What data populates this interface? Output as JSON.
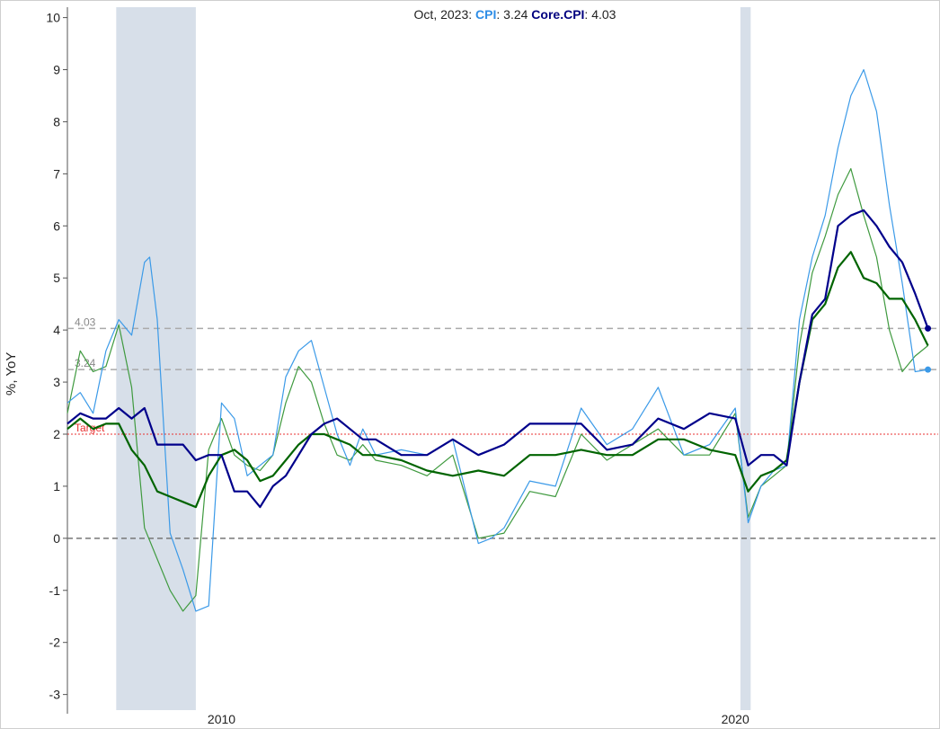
{
  "legend": {
    "date": "Oct, 2023",
    "cpi_name": "CPI",
    "cpi_value": "3.24",
    "core_name": "Core.CPI",
    "core_value": "4.03"
  },
  "colors": {
    "cpi": "#3b9ae8",
    "cpi_green": "#3f9a3f",
    "core": "#00008b",
    "core_green": "#006400",
    "target": "#e83030",
    "recession": "#d7dfe9",
    "dash": "#aaaaaa"
  },
  "chart_data": {
    "type": "line",
    "ylabel": "%, YoY",
    "ylim": [
      -3.3,
      10.2
    ],
    "xlim": [
      2007.0,
      2023.95
    ],
    "x_ticks": [
      "2010",
      "2020"
    ],
    "y_ticks": [
      -3,
      -2,
      -1,
      0,
      1,
      2,
      3,
      4,
      5,
      6,
      7,
      8,
      9,
      10
    ],
    "recessions": [
      [
        2007.95,
        2009.5
      ],
      [
        2020.1,
        2020.3
      ]
    ],
    "target": {
      "value": 2,
      "label": "Target"
    },
    "reference_lines": [
      {
        "value": 4.03,
        "label": "4.03"
      },
      {
        "value": 3.24,
        "label": "3.24"
      }
    ],
    "series": [
      {
        "name": "CPI",
        "style": "thin",
        "x": [
          2007.0,
          2007.25,
          2007.5,
          2007.75,
          2008.0,
          2008.25,
          2008.5,
          2008.6,
          2008.75,
          2009.0,
          2009.25,
          2009.5,
          2009.75,
          2010.0,
          2010.25,
          2010.5,
          2010.75,
          2011.0,
          2011.25,
          2011.5,
          2011.75,
          2012.0,
          2012.25,
          2012.5,
          2012.75,
          2013.0,
          2013.5,
          2014.0,
          2014.5,
          2015.0,
          2015.25,
          2015.5,
          2016.0,
          2016.5,
          2017.0,
          2017.5,
          2018.0,
          2018.5,
          2019.0,
          2019.5,
          2020.0,
          2020.25,
          2020.5,
          2020.75,
          2021.0,
          2021.25,
          2021.5,
          2021.75,
          2022.0,
          2022.25,
          2022.5,
          2022.75,
          2023.0,
          2023.25,
          2023.5,
          2023.75
        ],
        "values": [
          2.6,
          2.8,
          2.4,
          3.6,
          4.2,
          3.9,
          5.3,
          5.4,
          4.2,
          0.1,
          -0.6,
          -1.4,
          -1.3,
          2.6,
          2.3,
          1.2,
          1.4,
          1.6,
          3.1,
          3.6,
          3.8,
          2.9,
          2.0,
          1.4,
          2.1,
          1.6,
          1.7,
          1.6,
          1.9,
          -0.1,
          0.0,
          0.2,
          1.1,
          1.0,
          2.5,
          1.8,
          2.1,
          2.9,
          1.6,
          1.8,
          2.5,
          0.3,
          1.0,
          1.3,
          1.4,
          4.2,
          5.4,
          6.2,
          7.5,
          8.5,
          9.0,
          8.2,
          6.4,
          4.9,
          3.2,
          3.24
        ]
      },
      {
        "name": "Core.CPI",
        "style": "thick",
        "x": [
          2007.0,
          2007.25,
          2007.5,
          2007.75,
          2008.0,
          2008.25,
          2008.5,
          2008.75,
          2009.0,
          2009.25,
          2009.5,
          2009.75,
          2010.0,
          2010.25,
          2010.5,
          2010.75,
          2011.0,
          2011.25,
          2011.5,
          2011.75,
          2012.0,
          2012.25,
          2012.5,
          2012.75,
          2013.0,
          2013.5,
          2014.0,
          2014.5,
          2015.0,
          2015.5,
          2016.0,
          2016.5,
          2017.0,
          2017.5,
          2018.0,
          2018.5,
          2019.0,
          2019.5,
          2020.0,
          2020.25,
          2020.5,
          2020.75,
          2021.0,
          2021.25,
          2021.5,
          2021.75,
          2022.0,
          2022.25,
          2022.5,
          2022.75,
          2023.0,
          2023.25,
          2023.5,
          2023.75
        ],
        "values": [
          2.2,
          2.4,
          2.3,
          2.3,
          2.5,
          2.3,
          2.5,
          1.8,
          1.8,
          1.8,
          1.5,
          1.6,
          1.6,
          0.9,
          0.9,
          0.6,
          1.0,
          1.2,
          1.6,
          2.0,
          2.2,
          2.3,
          2.1,
          1.9,
          1.9,
          1.6,
          1.6,
          1.9,
          1.6,
          1.8,
          2.2,
          2.2,
          2.2,
          1.7,
          1.8,
          2.3,
          2.1,
          2.4,
          2.3,
          1.4,
          1.6,
          1.6,
          1.4,
          3.0,
          4.3,
          4.6,
          6.0,
          6.2,
          6.3,
          6.0,
          5.6,
          5.3,
          4.7,
          4.03
        ]
      },
      {
        "name": "CPI (green, thin)",
        "style": "thin",
        "x": [
          2007.0,
          2007.25,
          2007.5,
          2007.75,
          2008.0,
          2008.25,
          2008.5,
          2008.75,
          2009.0,
          2009.25,
          2009.5,
          2009.75,
          2010.0,
          2010.25,
          2010.5,
          2010.75,
          2011.0,
          2011.25,
          2011.5,
          2011.75,
          2012.0,
          2012.25,
          2012.5,
          2012.75,
          2013.0,
          2013.5,
          2014.0,
          2014.5,
          2015.0,
          2015.5,
          2016.0,
          2016.5,
          2017.0,
          2017.5,
          2018.0,
          2018.5,
          2019.0,
          2019.5,
          2020.0,
          2020.25,
          2020.5,
          2020.75,
          2021.0,
          2021.25,
          2021.5,
          2021.75,
          2022.0,
          2022.25,
          2022.5,
          2022.75,
          2023.0,
          2023.25,
          2023.5,
          2023.75
        ],
        "values": [
          2.4,
          3.6,
          3.2,
          3.3,
          4.1,
          2.9,
          0.2,
          -0.4,
          -1.0,
          -1.4,
          -1.1,
          1.7,
          2.3,
          1.6,
          1.4,
          1.3,
          1.6,
          2.6,
          3.3,
          3.0,
          2.2,
          1.6,
          1.5,
          1.8,
          1.5,
          1.4,
          1.2,
          1.6,
          0.0,
          0.1,
          0.9,
          0.8,
          2.0,
          1.5,
          1.8,
          2.1,
          1.6,
          1.6,
          2.4,
          0.4,
          1.0,
          1.2,
          1.4,
          3.7,
          5.1,
          5.8,
          6.6,
          7.1,
          6.2,
          5.4,
          4.0,
          3.2,
          3.5,
          3.7
        ]
      },
      {
        "name": "Core.CPI (green, thick)",
        "style": "thick",
        "x": [
          2007.0,
          2007.25,
          2007.5,
          2007.75,
          2008.0,
          2008.25,
          2008.5,
          2008.75,
          2009.0,
          2009.25,
          2009.5,
          2009.75,
          2010.0,
          2010.25,
          2010.5,
          2010.75,
          2011.0,
          2011.25,
          2011.5,
          2011.75,
          2012.0,
          2012.25,
          2012.5,
          2012.75,
          2013.0,
          2013.5,
          2014.0,
          2014.5,
          2015.0,
          2015.5,
          2016.0,
          2016.5,
          2017.0,
          2017.5,
          2018.0,
          2018.5,
          2019.0,
          2019.5,
          2020.0,
          2020.25,
          2020.5,
          2020.75,
          2021.0,
          2021.25,
          2021.5,
          2021.75,
          2022.0,
          2022.25,
          2022.5,
          2022.75,
          2023.0,
          2023.25,
          2023.5,
          2023.75
        ],
        "values": [
          2.1,
          2.3,
          2.1,
          2.2,
          2.2,
          1.7,
          1.4,
          0.9,
          0.8,
          0.7,
          0.6,
          1.2,
          1.6,
          1.7,
          1.5,
          1.1,
          1.2,
          1.5,
          1.8,
          2.0,
          2.0,
          1.9,
          1.8,
          1.6,
          1.6,
          1.5,
          1.3,
          1.2,
          1.3,
          1.2,
          1.6,
          1.6,
          1.7,
          1.6,
          1.6,
          1.9,
          1.9,
          1.7,
          1.6,
          0.9,
          1.2,
          1.3,
          1.5,
          3.0,
          4.2,
          4.5,
          5.2,
          5.5,
          5.0,
          4.9,
          4.6,
          4.6,
          4.2,
          3.7
        ]
      }
    ]
  }
}
